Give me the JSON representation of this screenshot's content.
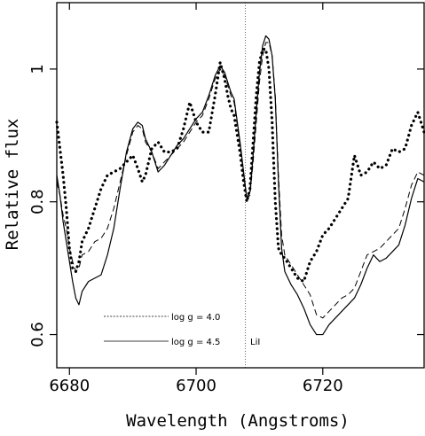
{
  "chart_data": {
    "type": "line",
    "title": "",
    "xlabel": "Wavelength (Angstroms)",
    "ylabel": "Relative flux",
    "xlim": [
      6678,
      6736
    ],
    "ylim": [
      0.55,
      1.1
    ],
    "xticks": [
      6680,
      6700,
      6720
    ],
    "yticks": [
      0.6,
      0.8,
      1
    ],
    "xtick_labels": [
      "6680",
      "6700",
      "6720"
    ],
    "ytick_labels": [
      "0.6",
      "0.8",
      "1"
    ],
    "grid": false,
    "legend_position": "bottom-left",
    "series": [
      {
        "name": "log g = 4.0",
        "style": "dashed",
        "x": [
          6678,
          6678.5,
          6679,
          6679.5,
          6680,
          6680.5,
          6681,
          6681.5,
          6682,
          6683,
          6684,
          6685,
          6686,
          6687,
          6688,
          6689,
          6690,
          6690.8,
          6691.5,
          6692,
          6693,
          6694,
          6695,
          6696,
          6697,
          6698,
          6699,
          6700,
          6701,
          6702,
          6703,
          6703.8,
          6704.5,
          6705,
          6705.5,
          6706,
          6707,
          6707.5,
          6708,
          6708.5,
          6709,
          6709.5,
          6710,
          6710.5,
          6711,
          6711.5,
          6712,
          6712.5,
          6713,
          6713.5,
          6714,
          6715,
          6716,
          6717,
          6718,
          6719,
          6720,
          6721,
          6722,
          6723,
          6724,
          6725,
          6726,
          6727,
          6728,
          6729,
          6730,
          6731,
          6732,
          6733,
          6734,
          6735,
          6736
        ],
        "y": [
          0.83,
          0.81,
          0.78,
          0.76,
          0.73,
          0.71,
          0.695,
          0.7,
          0.72,
          0.725,
          0.74,
          0.745,
          0.76,
          0.79,
          0.83,
          0.87,
          0.905,
          0.915,
          0.91,
          0.89,
          0.875,
          0.85,
          0.86,
          0.87,
          0.88,
          0.89,
          0.905,
          0.92,
          0.93,
          0.955,
          0.985,
          1.0,
          0.99,
          0.975,
          0.96,
          0.95,
          0.88,
          0.84,
          0.805,
          0.81,
          0.86,
          0.92,
          0.98,
          1.02,
          1.04,
          1.04,
          1.02,
          0.96,
          0.84,
          0.75,
          0.72,
          0.705,
          0.69,
          0.675,
          0.66,
          0.63,
          0.625,
          0.635,
          0.645,
          0.655,
          0.66,
          0.67,
          0.695,
          0.72,
          0.725,
          0.73,
          0.74,
          0.75,
          0.76,
          0.79,
          0.825,
          0.845,
          0.84
        ]
      },
      {
        "name": "log g = 4.5",
        "style": "solid",
        "x": [
          6678,
          6678.5,
          6679,
          6679.5,
          6680,
          6680.5,
          6681,
          6681.5,
          6682,
          6683,
          6684,
          6685,
          6686,
          6687,
          6688,
          6689,
          6690,
          6690.8,
          6691.5,
          6692,
          6693,
          6694,
          6695,
          6696,
          6697,
          6698,
          6699,
          6700,
          6701,
          6702,
          6703,
          6703.8,
          6704.5,
          6705,
          6705.5,
          6706,
          6707,
          6707.5,
          6708,
          6708.5,
          6709,
          6709.5,
          6710,
          6710.5,
          6711,
          6711.5,
          6712,
          6712.5,
          6713,
          6713.5,
          6714,
          6715,
          6716,
          6717,
          6718,
          6719,
          6720,
          6721,
          6722,
          6723,
          6724,
          6725,
          6726,
          6727,
          6728,
          6729,
          6730,
          6731,
          6732,
          6733,
          6734,
          6735,
          6736
        ],
        "y": [
          0.84,
          0.81,
          0.77,
          0.74,
          0.71,
          0.68,
          0.655,
          0.645,
          0.665,
          0.68,
          0.685,
          0.69,
          0.72,
          0.76,
          0.82,
          0.875,
          0.91,
          0.92,
          0.915,
          0.895,
          0.875,
          0.845,
          0.855,
          0.87,
          0.885,
          0.895,
          0.91,
          0.925,
          0.935,
          0.96,
          0.99,
          1.005,
          0.995,
          0.98,
          0.965,
          0.955,
          0.885,
          0.845,
          0.805,
          0.815,
          0.87,
          0.935,
          0.995,
          1.035,
          1.05,
          1.045,
          1.02,
          0.955,
          0.83,
          0.73,
          0.695,
          0.675,
          0.66,
          0.64,
          0.615,
          0.6,
          0.6,
          0.615,
          0.625,
          0.635,
          0.645,
          0.655,
          0.675,
          0.7,
          0.72,
          0.71,
          0.715,
          0.725,
          0.735,
          0.765,
          0.805,
          0.835,
          0.83
        ]
      },
      {
        "name": "",
        "style": "dotted",
        "x": [
          6678,
          6678.5,
          6679,
          6679.5,
          6680,
          6680.5,
          6681,
          6681.5,
          6682,
          6683,
          6684,
          6685,
          6686,
          6687,
          6688,
          6689,
          6690,
          6690.8,
          6691.5,
          6692,
          6693,
          6694,
          6695,
          6696,
          6697,
          6698,
          6699,
          6700,
          6701,
          6702,
          6703,
          6703.8,
          6704.5,
          6705,
          6705.5,
          6706,
          6707,
          6707.5,
          6708,
          6708.5,
          6709,
          6709.5,
          6710,
          6710.5,
          6711,
          6711.5,
          6712,
          6712.5,
          6713,
          6713.5,
          6714,
          6715,
          6716,
          6717,
          6718,
          6719,
          6720,
          6721,
          6722,
          6723,
          6724,
          6725,
          6726,
          6727,
          6728,
          6729,
          6730,
          6731,
          6732,
          6733,
          6734,
          6735,
          6736
        ],
        "y": [
          0.92,
          0.88,
          0.84,
          0.79,
          0.73,
          0.7,
          0.695,
          0.71,
          0.74,
          0.76,
          0.79,
          0.82,
          0.84,
          0.845,
          0.85,
          0.86,
          0.87,
          0.85,
          0.83,
          0.84,
          0.88,
          0.89,
          0.875,
          0.875,
          0.88,
          0.91,
          0.95,
          0.92,
          0.905,
          0.905,
          0.96,
          1.01,
          0.985,
          0.96,
          0.94,
          0.93,
          0.87,
          0.83,
          0.8,
          0.82,
          0.89,
          0.96,
          1.01,
          1.03,
          1.03,
          1.0,
          0.92,
          0.8,
          0.73,
          0.72,
          0.715,
          0.7,
          0.685,
          0.68,
          0.71,
          0.725,
          0.75,
          0.76,
          0.775,
          0.79,
          0.805,
          0.87,
          0.84,
          0.845,
          0.86,
          0.85,
          0.855,
          0.88,
          0.875,
          0.88,
          0.915,
          0.935,
          0.905
        ]
      }
    ],
    "vline": {
      "x": 6707.8,
      "style": "dotted",
      "label": "LiI"
    }
  }
}
